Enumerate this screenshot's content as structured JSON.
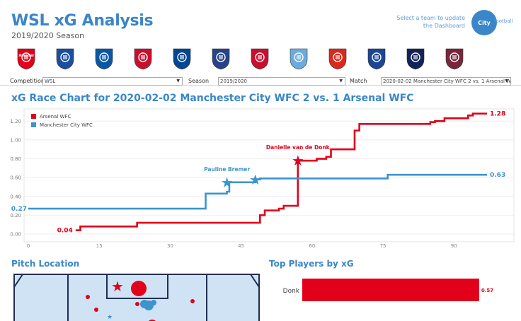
{
  "header": {
    "title": "WSL xG Analysis",
    "subtitle": "2019/2020 Season",
    "hint": "Select a team to update the Dashboard",
    "brand": {
      "main": "City",
      "tail": "football"
    }
  },
  "teams": [
    {
      "name": "arsenal-crest",
      "color": "#e2001a",
      "label": "Arsenal"
    },
    {
      "name": "birmingham-crest",
      "color": "#1a4fa0",
      "label": ""
    },
    {
      "name": "brighton-crest",
      "color": "#0a57a5",
      "label": ""
    },
    {
      "name": "bristol-city-crest",
      "color": "#c8102e",
      "label": ""
    },
    {
      "name": "chelsea-crest",
      "color": "#034694",
      "label": ""
    },
    {
      "name": "everton-crest",
      "color": "#274488",
      "label": ""
    },
    {
      "name": "liverpool-crest",
      "color": "#c8102e",
      "label": ""
    },
    {
      "name": "manchester-city-crest",
      "color": "#6cabdd",
      "label": ""
    },
    {
      "name": "manchester-united-crest",
      "color": "#da291c",
      "label": ""
    },
    {
      "name": "reading-crest",
      "color": "#1c4596",
      "label": ""
    },
    {
      "name": "tottenham-crest",
      "color": "#132257",
      "label": ""
    },
    {
      "name": "west-ham-crest",
      "color": "#7a263a",
      "label": ""
    }
  ],
  "filters": {
    "competition_label": "Competition",
    "competition_value": "WSL",
    "season_label": "Season",
    "season_value": "2019/2020",
    "match_label": "Match",
    "match_value": "2020-02-02 Manchester City WFC 2 vs. 1 Arsenal W..."
  },
  "colors": {
    "arsenal": "#e2001a",
    "city": "#3d94cc",
    "accent": "#3a86c8"
  },
  "chart_data": {
    "type": "line",
    "title": "xG Race Chart for 2020-02-02 Manchester City WFC 2  vs.  1 Arsenal WFC",
    "xlim": [
      0,
      97
    ],
    "ylim": [
      0,
      1.3
    ],
    "x_ticks": [
      "0",
      "15",
      "30",
      "45",
      "60",
      "75",
      "90"
    ],
    "x_tick_values": [
      0,
      15,
      30,
      45,
      60,
      75,
      90
    ],
    "y_ticks": [
      "0.00",
      "0.20",
      "0.40",
      "0.60",
      "0.80",
      "1.00",
      "1.20"
    ],
    "y_tick_values": [
      0,
      0.2,
      0.4,
      0.6,
      0.8,
      1.0,
      1.2
    ],
    "legend": [
      "Arsenal WFC",
      "Manchester City WFC"
    ],
    "legend_position": "top-left",
    "series": [
      {
        "name": "Arsenal WFC",
        "color": "#e2001a",
        "start_label": "0.04",
        "end_label": "1.28",
        "steps": [
          [
            10,
            0.04
          ],
          [
            11,
            0.08
          ],
          [
            23,
            0.12
          ],
          [
            49,
            0.2
          ],
          [
            50,
            0.25
          ],
          [
            53,
            0.27
          ],
          [
            54,
            0.3
          ],
          [
            57,
            0.78
          ],
          [
            61,
            0.8
          ],
          [
            63,
            0.82
          ],
          [
            64,
            0.9
          ],
          [
            69,
            1.1
          ],
          [
            70,
            1.17
          ],
          [
            85,
            1.19
          ],
          [
            86,
            1.2
          ],
          [
            88,
            1.23
          ],
          [
            93,
            1.26
          ],
          [
            94,
            1.28
          ],
          [
            97,
            1.28
          ]
        ],
        "goals": [
          {
            "x": 57,
            "y": 0.78,
            "label": "Danielle van de Donk"
          }
        ]
      },
      {
        "name": "Manchester City WFC",
        "color": "#3d94cc",
        "start_label": "0.27",
        "end_label": "0.63",
        "steps": [
          [
            0,
            0.27
          ],
          [
            37,
            0.27
          ],
          [
            37.5,
            0.43
          ],
          [
            42,
            0.45
          ],
          [
            42.5,
            0.55
          ],
          [
            48,
            0.58
          ],
          [
            49,
            0.59
          ],
          [
            75,
            0.59
          ],
          [
            76,
            0.63
          ],
          [
            97,
            0.63
          ]
        ],
        "goals": [
          {
            "x": 42,
            "y": 0.55,
            "label": "Pauline Bremer"
          },
          {
            "x": 48,
            "y": 0.58,
            "label": ""
          }
        ]
      }
    ]
  },
  "pitch": {
    "title": "Pitch Location"
  },
  "top_players": {
    "title": "Top Players by xG",
    "chart_data": {
      "type": "bar",
      "categories": [
        "Donk"
      ],
      "values": [
        0.57
      ],
      "value_labels": [
        "0.57"
      ],
      "color": "#e2001a",
      "xlim": [
        0,
        0.6
      ]
    }
  }
}
